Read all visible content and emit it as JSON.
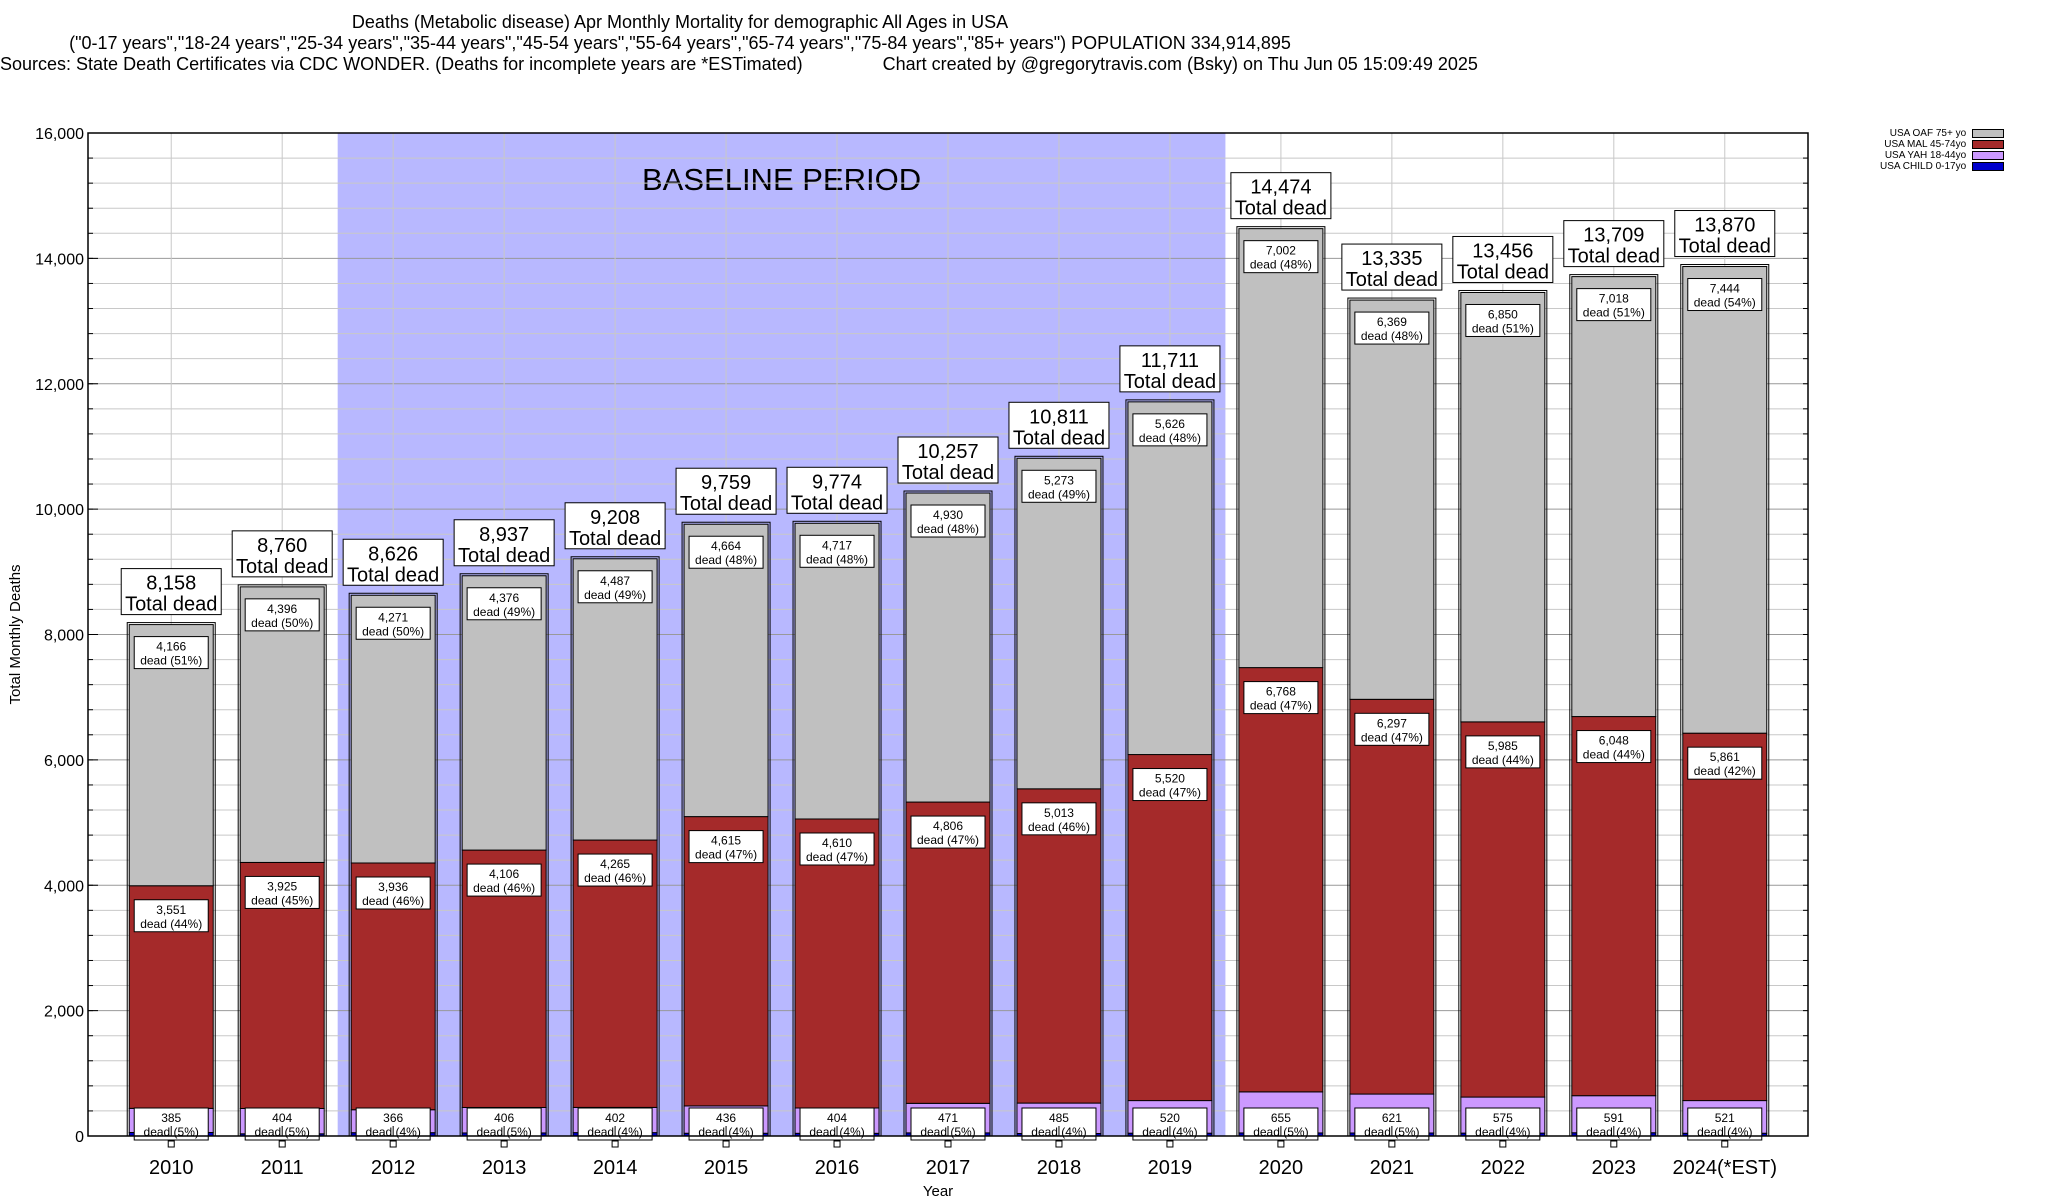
{
  "chart_data": {
    "type": "bar",
    "stacked": true,
    "title_lines": [
      "Deaths (Metabolic disease) Apr Monthly Mortality for demographic All Ages in USA",
      "(\"0-17 years\",\"18-24 years\",\"25-34 years\",\"35-44 years\",\"45-54 years\",\"55-64 years\",\"65-74 years\",\"75-84 years\",\"85+ years\") POPULATION 334,914,895",
      "Sources: State Death Certificates via CDC WONDER. (Deaths for incomplete years are *ESTimated)                Chart created by @gregorytravis.com (Bsky) on Thu Jun 05 15:09:49 2025"
    ],
    "xlabel": "Year",
    "ylabel": "Total Monthly Deaths",
    "ylim": [
      0,
      16000
    ],
    "yticks": [
      0,
      2000,
      4000,
      6000,
      8000,
      10000,
      12000,
      14000,
      16000
    ],
    "ytick_labels": [
      "0",
      "2,000",
      "4,000",
      "6,000",
      "8,000",
      "10,000",
      "12,000",
      "14,000",
      "16,000"
    ],
    "grid": true,
    "legend_position": "top-right",
    "baseline_label": "BASELINE PERIOD",
    "baseline_range": [
      "2012",
      "2019"
    ],
    "total_suffix": "Total dead",
    "categories": [
      "2010",
      "2011",
      "2012",
      "2013",
      "2014",
      "2015",
      "2016",
      "2017",
      "2018",
      "2019",
      "2020",
      "2021",
      "2022",
      "2023",
      "2024(*EST)"
    ],
    "totals": [
      8158,
      8760,
      8626,
      8937,
      9208,
      9759,
      9774,
      10257,
      10811,
      11711,
      14474,
      13335,
      13456,
      13709,
      13870
    ],
    "total_labels": [
      "8,158",
      "8,760",
      "8,626",
      "8,937",
      "9,208",
      "9,759",
      "9,774",
      "10,257",
      "10,811",
      "11,711",
      "14,474",
      "13,335",
      "13,456",
      "13,709",
      "13,870"
    ],
    "series": [
      {
        "name": "USA CHILD 0-17yo",
        "color": "#0000cc",
        "values": [
          56,
          35,
          53,
          49,
          54,
          44,
          43,
          50,
          40,
          45,
          49,
          48,
          46,
          52,
          44
        ]
      },
      {
        "name": "USA YAH 18-44yo",
        "color": "#cc99ff",
        "values": [
          385,
          404,
          366,
          406,
          402,
          436,
          404,
          471,
          485,
          520,
          655,
          621,
          575,
          591,
          521
        ],
        "labels": [
          "385",
          "404",
          "366",
          "406",
          "402",
          "436",
          "404",
          "471",
          "485",
          "520",
          "655",
          "621",
          "575",
          "591",
          "521"
        ],
        "pct_labels": [
          "dead (5%)",
          "dead (5%)",
          "dead (4%)",
          "dead (5%)",
          "dead (4%)",
          "dead (4%)",
          "dead (4%)",
          "dead (5%)",
          "dead (4%)",
          "dead (4%)",
          "dead (5%)",
          "dead (5%)",
          "dead (4%)",
          "dead (4%)",
          "dead (4%)"
        ]
      },
      {
        "name": "USA MAL 45-74yo",
        "color": "#a52a2a",
        "values": [
          3551,
          3925,
          3936,
          4106,
          4265,
          4615,
          4610,
          4806,
          5013,
          5520,
          6768,
          6297,
          5985,
          6048,
          5861
        ],
        "labels": [
          "3,551",
          "3,925",
          "3,936",
          "4,106",
          "4,265",
          "4,615",
          "4,610",
          "4,806",
          "5,013",
          "5,520",
          "6,768",
          "6,297",
          "5,985",
          "6,048",
          "5,861"
        ],
        "pct_labels": [
          "dead (44%)",
          "dead (45%)",
          "dead (46%)",
          "dead (46%)",
          "dead (46%)",
          "dead (47%)",
          "dead (47%)",
          "dead (47%)",
          "dead (46%)",
          "dead (47%)",
          "dead (47%)",
          "dead (47%)",
          "dead (44%)",
          "dead (44%)",
          "dead (42%)"
        ]
      },
      {
        "name": "USA OAF 75+ yo",
        "color": "#c0c0c0",
        "values": [
          4166,
          4396,
          4271,
          4376,
          4487,
          4664,
          4717,
          4930,
          5273,
          5626,
          7002,
          6369,
          6850,
          7018,
          7444
        ],
        "labels": [
          "4,166",
          "4,396",
          "4,271",
          "4,376",
          "4,487",
          "4,664",
          "4,717",
          "4,930",
          "5,273",
          "5,626",
          "7,002",
          "6,369",
          "6,850",
          "7,018",
          "7,444"
        ],
        "pct_labels": [
          "dead (51%)",
          "dead (50%)",
          "dead (50%)",
          "dead (49%)",
          "dead (49%)",
          "dead (48%)",
          "dead (48%)",
          "dead (48%)",
          "dead (49%)",
          "dead (48%)",
          "dead (48%)",
          "dead (48%)",
          "dead (51%)",
          "dead (51%)",
          "dead (54%)"
        ]
      }
    ],
    "legend_order": [
      "USA OAF 75+ yo",
      "USA MAL 45-74yo",
      "USA YAH 18-44yo",
      "USA CHILD 0-17yo"
    ],
    "baseline_color": "#b8b8ff"
  }
}
